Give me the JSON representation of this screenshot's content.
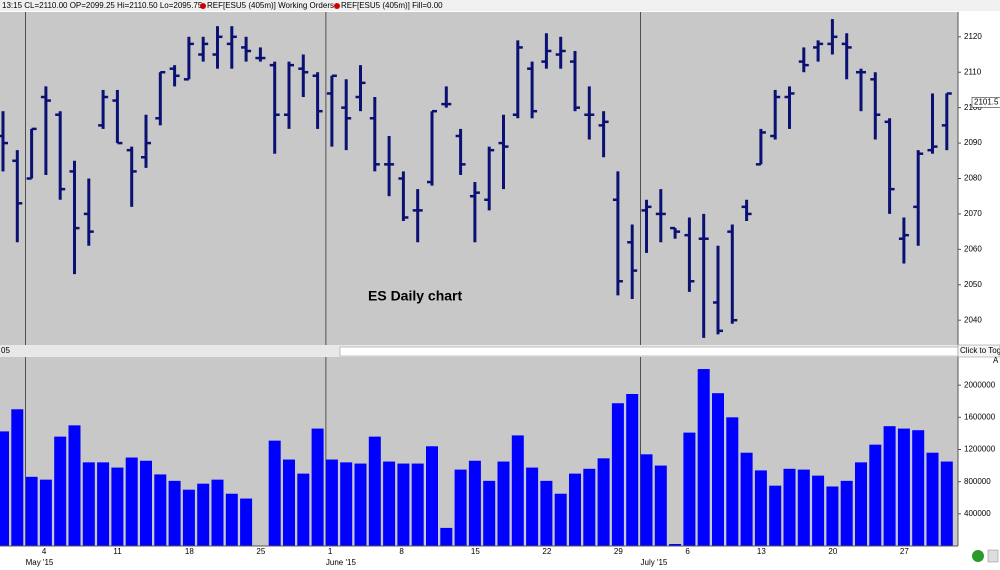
{
  "header": {
    "status": "13:15 CL=2110.00 OP=2099.25 Hi=2110.50 Lo=2095.75",
    "ref_orders": "REF[ESU5 (405m)] Working Orders",
    "ref_fill": "REF[ESU5 (405m)] Fill=0.00"
  },
  "pane_label": "05",
  "toggle_label": "Click to Tog",
  "volume_corner": "A",
  "chart_data": [
    {
      "type": "ohlc",
      "annotation": "ES Daily chart",
      "color": "#0a1172",
      "background": "#c8c8c8",
      "categories": [
        null,
        null,
        null,
        "4",
        null,
        null,
        null,
        null,
        "11",
        null,
        null,
        null,
        null,
        "18",
        null,
        null,
        null,
        null,
        "25",
        null,
        null,
        null,
        null,
        "1",
        null,
        null,
        null,
        null,
        "8",
        null,
        null,
        null,
        null,
        "15",
        null,
        null,
        null,
        null,
        "22",
        null,
        null,
        null,
        null,
        "29",
        null,
        null,
        null,
        null,
        "6",
        null,
        null,
        null,
        null,
        "13",
        null,
        null,
        null,
        null,
        "20",
        null,
        null,
        null,
        null,
        "27",
        null,
        null,
        null
      ],
      "months": [
        null,
        null,
        "May '15",
        null,
        null,
        null,
        null,
        null,
        null,
        null,
        null,
        null,
        null,
        null,
        null,
        null,
        null,
        null,
        null,
        null,
        null,
        null,
        null,
        "June '15",
        null,
        null,
        null,
        null,
        null,
        null,
        null,
        null,
        null,
        null,
        null,
        null,
        null,
        null,
        null,
        null,
        null,
        null,
        null,
        null,
        null,
        "July '15",
        null,
        null,
        null,
        null,
        null,
        null,
        null,
        null,
        null,
        null,
        null,
        null,
        null,
        null,
        null,
        null,
        null,
        null,
        null,
        null,
        null
      ],
      "open": [
        2092,
        2085,
        2080,
        2103,
        2098,
        2082,
        2070,
        2095,
        2102,
        2088,
        2086,
        2097,
        2111,
        2108,
        2115,
        2115,
        2118,
        2117,
        2114,
        2112,
        2098,
        2111,
        2109,
        2104,
        2100,
        2103,
        2097,
        2084,
        2080,
        2071,
        2079,
        2101,
        2092,
        2075,
        2074,
        2090,
        2098,
        2111,
        2113,
        2115,
        2113,
        2098,
        2095,
        2074,
        2062,
        2071,
        2070,
        2066,
        2064,
        2063,
        2045,
        2065,
        2072,
        2084,
        2092,
        2103,
        2113,
        2117,
        2118,
        2118,
        2110,
        2108,
        2096,
        2063,
        2072,
        2088,
        2095
      ],
      "high": [
        2099,
        2088,
        2094,
        2106,
        2099,
        2085,
        2080,
        2105,
        2105,
        2089,
        2098,
        2110,
        2112,
        2120,
        2120,
        2123,
        2123,
        2120,
        2117,
        2113,
        2113,
        2115,
        2110,
        2109,
        2108,
        2112,
        2103,
        2092,
        2082,
        2077,
        2099,
        2106,
        2094,
        2079,
        2089,
        2098,
        2119,
        2113,
        2121,
        2120,
        2116,
        2106,
        2099,
        2082,
        2067,
        2074,
        2077,
        2066,
        2069,
        2070,
        2061,
        2067,
        2074,
        2094,
        2105,
        2106,
        2117,
        2119,
        2125,
        2121,
        2111,
        2110,
        2097,
        2069,
        2088,
        2104,
        2104
      ],
      "low": [
        2082,
        2062,
        2080,
        2081,
        2074,
        2053,
        2061,
        2094,
        2090,
        2072,
        2083,
        2095,
        2106,
        2108,
        2113,
        2111,
        2111,
        2113,
        2113,
        2087,
        2094,
        2103,
        2094,
        2089,
        2088,
        2099,
        2082,
        2075,
        2068,
        2062,
        2078,
        2100,
        2081,
        2062,
        2071,
        2077,
        2097,
        2097,
        2111,
        2111,
        2099,
        2091,
        2086,
        2047,
        2046,
        2059,
        2062,
        2063,
        2048,
        2035,
        2036,
        2039,
        2068,
        2084,
        2091,
        2094,
        2110,
        2113,
        2115,
        2108,
        2099,
        2091,
        2070,
        2056,
        2061,
        2087,
        2088
      ],
      "close": [
        2090,
        2073,
        2094,
        2102,
        2077,
        2066,
        2065,
        2103,
        2090,
        2082,
        2090,
        2110,
        2109,
        2118,
        2118,
        2120,
        2120,
        2116,
        2114,
        2098,
        2112,
        2110,
        2099,
        2109,
        2097,
        2107,
        2084,
        2084,
        2069,
        2071,
        2099,
        2101,
        2084,
        2076,
        2088,
        2089,
        2117,
        2099,
        2116,
        2116,
        2100,
        2098,
        2096,
        2051,
        2054,
        2072,
        2070,
        2065,
        2051,
        2063,
        2037,
        2040,
        2070,
        2093,
        2103,
        2104,
        2112,
        2118,
        2120,
        2117,
        2110,
        2098,
        2077,
        2064,
        2087,
        2089,
        2104
      ],
      "last_price": 2101.5,
      "ylim": [
        2033,
        2127
      ],
      "yticks": [
        2040,
        2050,
        2060,
        2070,
        2080,
        2090,
        2100,
        2110,
        2120
      ]
    },
    {
      "type": "bar",
      "color": "#0000ff",
      "background": "#c8c8c8",
      "values": [
        1425000,
        1700000,
        860000,
        825000,
        1360000,
        1500000,
        1040000,
        1040000,
        975000,
        1100000,
        1060000,
        890000,
        810000,
        700000,
        775000,
        825000,
        650000,
        590000,
        null,
        1310000,
        1075000,
        900000,
        1460000,
        1075000,
        1040000,
        1025000,
        1360000,
        1050000,
        1025000,
        1025000,
        1240000,
        225000,
        950000,
        1060000,
        810000,
        1050000,
        1375000,
        975000,
        810000,
        650000,
        900000,
        960000,
        1090000,
        1775000,
        1890000,
        1140000,
        1000000,
        25000,
        1410000,
        2200000,
        1900000,
        1600000,
        1160000,
        940000,
        750000,
        960000,
        950000,
        875000,
        740000,
        810000,
        1040000,
        1260000,
        1490000,
        1460000,
        1440000,
        1160000,
        1050000
      ],
      "ylim": [
        0,
        2350000
      ],
      "yticks": [
        400000,
        800000,
        1200000,
        1600000,
        2000000
      ]
    }
  ]
}
